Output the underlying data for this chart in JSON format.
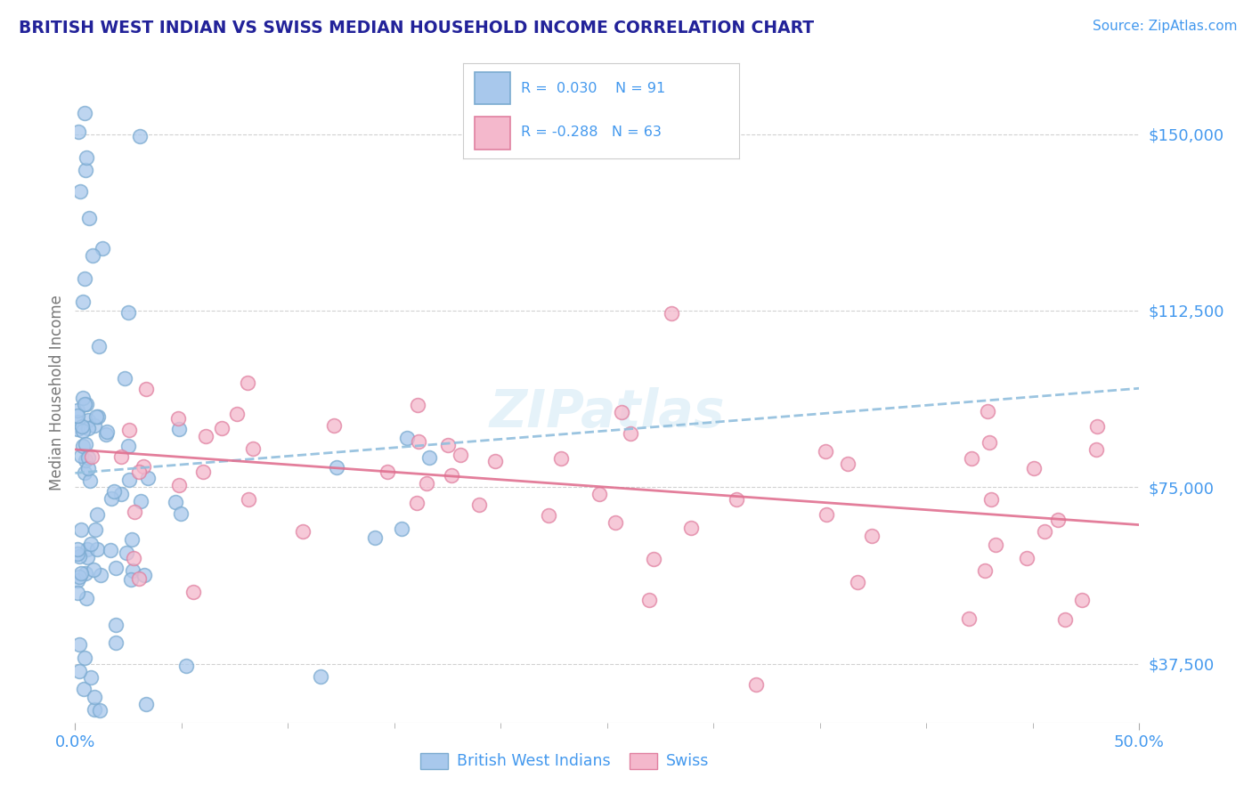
{
  "title": "BRITISH WEST INDIAN VS SWISS MEDIAN HOUSEHOLD INCOME CORRELATION CHART",
  "source": "Source: ZipAtlas.com",
  "ylabel": "Median Household Income",
  "color_blue": "#A8C8EC",
  "color_blue_edge": "#7AAAD0",
  "color_pink": "#F4B8CC",
  "color_pink_edge": "#E080A0",
  "color_blue_line": "#90BEDD",
  "color_pink_line": "#E07090",
  "color_title": "#222299",
  "color_source": "#4499EE",
  "color_axis_label": "#777777",
  "color_ytick": "#4499EE",
  "color_xtick": "#4499EE",
  "color_legend_text": "#4499EE",
  "color_grid": "#CCCCCC",
  "background_color": "#FFFFFF",
  "R1": 0.03,
  "N1": 91,
  "R2": -0.288,
  "N2": 63,
  "xlim": [
    0.0,
    0.5
  ],
  "ylim": [
    25000,
    165000
  ],
  "ytick_vals": [
    37500,
    75000,
    112500,
    150000
  ],
  "ytick_labels": [
    "$37,500",
    "$75,000",
    "$112,500",
    "$150,000"
  ],
  "xtick_vals": [
    0.0,
    0.5
  ],
  "xtick_labels": [
    "0.0%",
    "50.0%"
  ],
  "watermark": "ZIPatlas",
  "legend_label1": "British West Indians",
  "legend_label2": "Swiss"
}
